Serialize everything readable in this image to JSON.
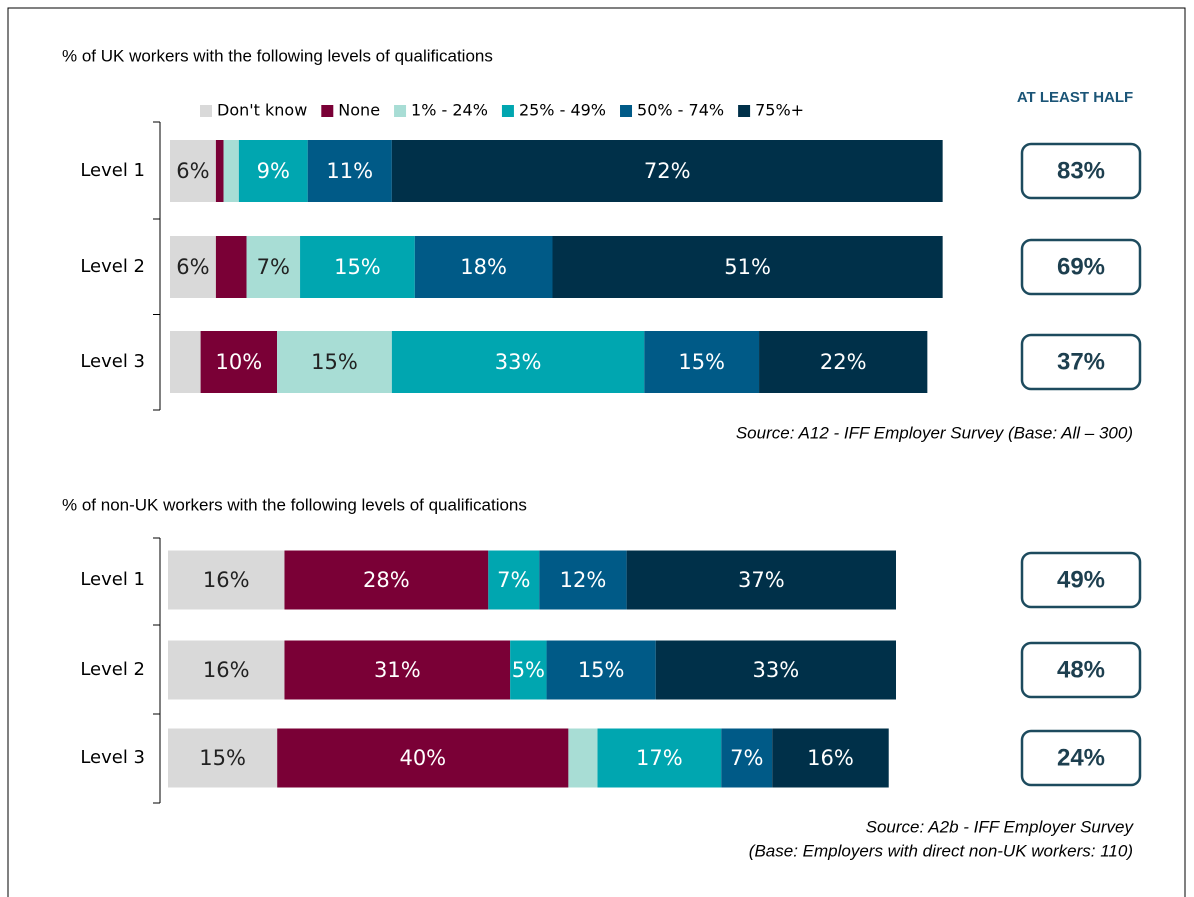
{
  "chart_data": [
    {
      "type": "bar",
      "orientation": "horizontal",
      "stacked": true,
      "title": "% of UK workers with the following levels of qualifications",
      "categories": [
        "Level 1",
        "Level 2",
        "Level 3"
      ],
      "xlim": [
        0,
        100
      ],
      "legend": "top",
      "series": [
        {
          "name": "Don't know",
          "color": "#d9d9d9",
          "values": [
            6,
            6,
            4
          ],
          "value_labels": [
            "6%",
            "6%",
            null
          ]
        },
        {
          "name": "None",
          "color": "#7a0036",
          "values": [
            1,
            4,
            10
          ],
          "value_labels": [
            null,
            null,
            "10%"
          ]
        },
        {
          "name": "1% - 24%",
          "color": "#a8ddd5",
          "values": [
            2,
            7,
            15
          ],
          "value_labels": [
            null,
            "7%",
            "15%"
          ]
        },
        {
          "name": "25% - 49%",
          "color": "#00a6b0",
          "values": [
            9,
            15,
            33
          ],
          "value_labels": [
            "9%",
            "15%",
            "33%"
          ]
        },
        {
          "name": "50% - 74%",
          "color": "#005a87",
          "values": [
            11,
            18,
            15
          ],
          "value_labels": [
            "11%",
            "18%",
            "15%"
          ]
        },
        {
          "name": "75%+",
          "color": "#003049",
          "values": [
            72,
            51,
            22
          ],
          "value_labels": [
            "72%",
            "51%",
            "22%"
          ]
        }
      ],
      "summary": {
        "title": "AT LEAST HALF",
        "values": [
          83,
          69,
          37
        ],
        "value_labels": [
          "83%",
          "69%",
          "37%"
        ]
      },
      "source": [
        "Source: A12 - IFF Employer Survey (Base: All – 300)"
      ]
    },
    {
      "type": "bar",
      "orientation": "horizontal",
      "stacked": true,
      "title": "% of non-UK workers with the following levels of qualifications",
      "categories": [
        "Level 1",
        "Level 2",
        "Level 3"
      ],
      "xlim": [
        0,
        100
      ],
      "series": [
        {
          "color": "#d9d9d9",
          "values": [
            16,
            16,
            15
          ],
          "value_labels": [
            "16%",
            "16%",
            "15%"
          ]
        },
        {
          "color": "#7a0036",
          "values": [
            28,
            31,
            40
          ],
          "value_labels": [
            "28%",
            "31%",
            "40%"
          ]
        },
        {
          "color": "#a8ddd5",
          "values": [
            0,
            0,
            4
          ],
          "value_labels": [
            null,
            null,
            null
          ]
        },
        {
          "color": "#00a6b0",
          "values": [
            7,
            5,
            17
          ],
          "value_labels": [
            "7%",
            "5%",
            "17%"
          ]
        },
        {
          "color": "#005a87",
          "values": [
            12,
            15,
            7
          ],
          "value_labels": [
            "12%",
            "15%",
            "7%"
          ]
        },
        {
          "color": "#003049",
          "values": [
            37,
            33,
            16
          ],
          "value_labels": [
            "37%",
            "33%",
            "16%"
          ]
        }
      ],
      "summary": {
        "values": [
          49,
          48,
          24
        ],
        "value_labels": [
          "49%",
          "48%",
          "24%"
        ]
      },
      "source": [
        "Source: A2b - IFF Employer Survey",
        "(Base: Employers with direct non-UK workers: 110)"
      ]
    }
  ]
}
